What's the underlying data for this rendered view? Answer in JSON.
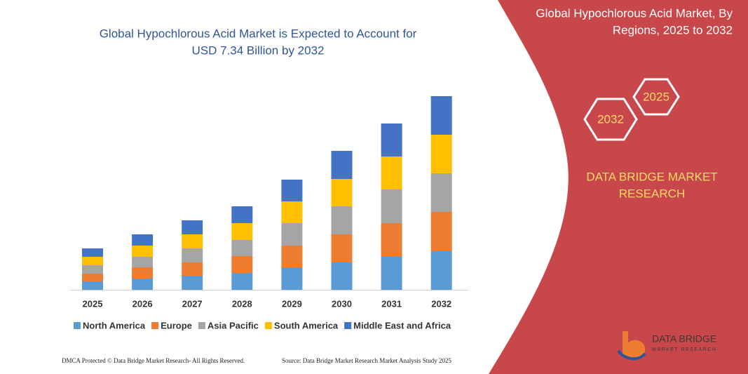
{
  "chart_data": {
    "type": "stacked_bar",
    "title": [
      "Global Hypochlorous Acid Market is Expected to Account for",
      "USD 7.34 Billion by 2032"
    ],
    "categories": [
      "2025",
      "2026",
      "2027",
      "2028",
      "2029",
      "2030",
      "2031",
      "2032"
    ],
    "series": [
      {
        "name": "North America",
        "color": "#5b9bd5",
        "values": [
          12,
          16,
          20,
          24,
          32,
          39,
          47,
          55
        ]
      },
      {
        "name": "Europe",
        "color": "#ed7d31",
        "values": [
          11,
          16,
          19,
          24,
          31,
          40,
          48,
          56
        ]
      },
      {
        "name": "Asia Pacific",
        "color": "#a5a5a5",
        "values": [
          12,
          15,
          20,
          23,
          32,
          40,
          48,
          55
        ]
      },
      {
        "name": "South America",
        "color": "#ffc000",
        "values": [
          12,
          16,
          20,
          24,
          31,
          39,
          47,
          55
        ]
      },
      {
        "name": "Middle East and Africa",
        "color": "#4472c4",
        "values": [
          12,
          16,
          20,
          24,
          31,
          40,
          47,
          55
        ]
      }
    ],
    "ylim": [
      0,
      280
    ],
    "legend": "bottom"
  },
  "panel": {
    "title": [
      "Global Hypochlorous Acid Market, By",
      "Regions, 2025 to 2032"
    ],
    "hexagons": [
      "2032",
      "2025"
    ],
    "brand": [
      "DATA BRIDGE MARKET",
      "RESEARCH"
    ]
  },
  "logo": {
    "name": "DATA BRIDGE",
    "tagline": "MARKET RESEARCH"
  },
  "footer": {
    "left": "DMCA Protected © Data Bridge Market Research- All Rights Reserved.",
    "right": "Source: Data Bridge Market Research Market Analysis Study 2025"
  }
}
